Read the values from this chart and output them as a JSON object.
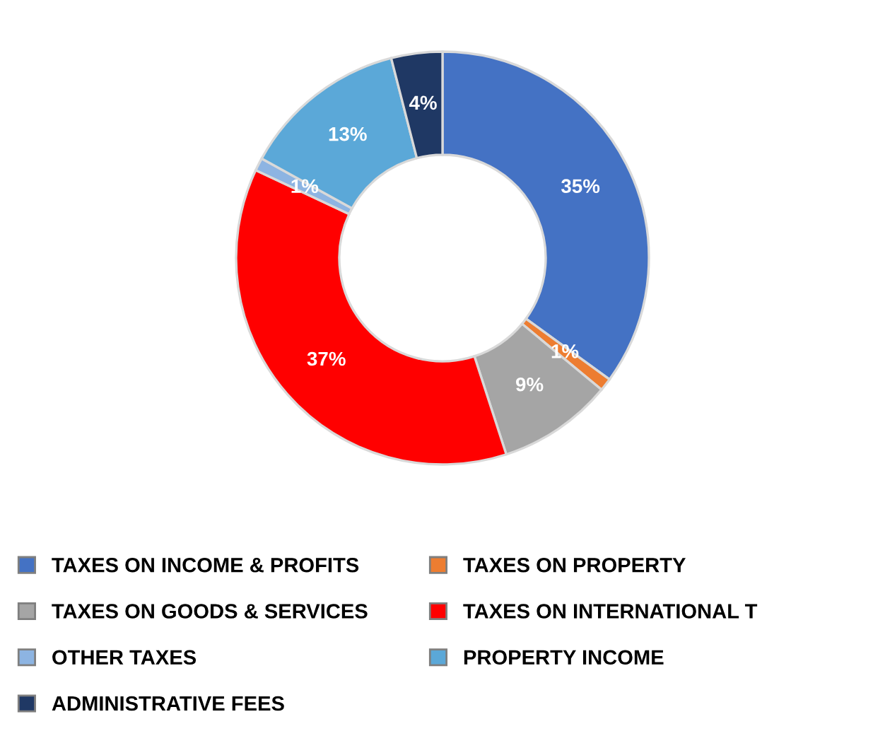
{
  "chart_data": {
    "type": "donut",
    "categories": [
      "TAXES ON INCOME & PROFITS",
      "TAXES ON PROPERTY",
      "TAXES ON GOODS & SERVICES",
      "TAXES ON INTERNATIONAL T",
      "OTHER TAXES",
      "PROPERTY INCOME",
      "ADMINISTRATIVE FEES"
    ],
    "values": [
      35,
      1,
      9,
      37,
      1,
      13,
      4
    ],
    "colors": [
      "#4472c4",
      "#ed7d31",
      "#a5a5a5",
      "#ff0000",
      "#8db4e2",
      "#5ba8d8",
      "#1f3864"
    ],
    "value_labels": [
      "35%",
      "1%",
      "9%",
      "37%",
      "1%",
      "13%",
      "4%"
    ],
    "legend": "bottom"
  }
}
